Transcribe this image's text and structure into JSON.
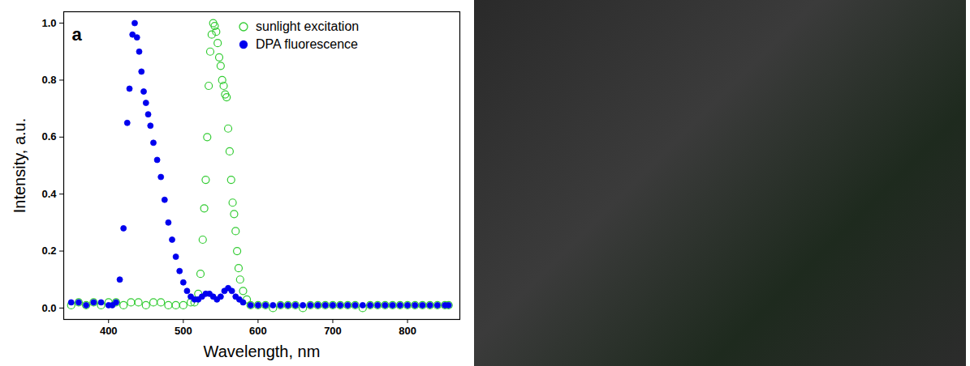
{
  "chart_data": {
    "type": "scatter",
    "annotations": [
      "a"
    ],
    "x_label": "Wavelength, nm",
    "y_label": "Intensity, a.u.",
    "xlim": [
      340,
      870
    ],
    "ylim": [
      -0.04,
      1.04
    ],
    "xticks": [
      400,
      500,
      600,
      700,
      800
    ],
    "yticks": [
      {
        "value": 0,
        "label": "0.0"
      },
      0.2,
      0.4,
      0.6,
      0.8,
      {
        "value": 1,
        "label": "1.0"
      }
    ],
    "grid": false,
    "legend": "upper right",
    "series": [
      {
        "name": "sunlight excitation",
        "color": "#33cc33",
        "marker": "open_circle",
        "x": [
          350,
          360,
          370,
          380,
          390,
          400,
          410,
          420,
          430,
          440,
          450,
          460,
          470,
          480,
          490,
          500,
          510,
          515,
          520,
          523,
          526,
          528,
          530,
          532,
          534,
          536,
          538,
          540,
          542,
          544,
          546,
          548,
          550,
          552,
          554,
          556,
          558,
          560,
          562,
          564,
          566,
          568,
          570,
          572,
          574,
          576,
          580,
          585,
          590,
          600,
          610,
          620,
          630,
          640,
          650,
          660,
          670,
          680,
          690,
          700,
          710,
          720,
          730,
          740,
          750,
          760,
          770,
          780,
          790,
          800,
          810,
          820,
          830,
          840,
          850,
          855
        ],
        "values": [
          0.01,
          0.02,
          0.01,
          0.02,
          0.01,
          0.02,
          0.02,
          0.01,
          0.02,
          0.02,
          0.01,
          0.02,
          0.02,
          0.01,
          0.01,
          0.01,
          0.02,
          0.02,
          0.05,
          0.12,
          0.24,
          0.35,
          0.45,
          0.6,
          0.78,
          0.9,
          0.96,
          1.0,
          0.99,
          0.97,
          0.93,
          0.88,
          0.85,
          0.8,
          0.78,
          0.75,
          0.74,
          0.63,
          0.55,
          0.45,
          0.37,
          0.33,
          0.27,
          0.2,
          0.14,
          0.1,
          0.06,
          0.03,
          0.01,
          0.01,
          0.01,
          0.0,
          0.01,
          0.01,
          0.01,
          0.0,
          0.01,
          0.01,
          0.01,
          0.01,
          0.01,
          0.01,
          0.01,
          0.0,
          0.01,
          0.01,
          0.01,
          0.01,
          0.01,
          0.01,
          0.01,
          0.01,
          0.01,
          0.01,
          0.01,
          0.01
        ]
      },
      {
        "name": "DPA fluorescence",
        "color": "#0000ee",
        "marker": "circle",
        "x": [
          350,
          360,
          370,
          380,
          390,
          400,
          405,
          410,
          415,
          420,
          425,
          428,
          432,
          435,
          438,
          441,
          444,
          447,
          450,
          453,
          456,
          460,
          465,
          470,
          475,
          480,
          485,
          490,
          495,
          500,
          505,
          510,
          515,
          520,
          525,
          530,
          535,
          540,
          545,
          550,
          555,
          560,
          565,
          570,
          575,
          580,
          590,
          600,
          610,
          620,
          630,
          640,
          650,
          660,
          670,
          680,
          690,
          700,
          710,
          720,
          730,
          740,
          750,
          760,
          770,
          780,
          790,
          800,
          810,
          820,
          830,
          840,
          850,
          855
        ],
        "values": [
          0.02,
          0.02,
          0.01,
          0.02,
          0.02,
          0.01,
          0.01,
          0.02,
          0.1,
          0.28,
          0.65,
          0.77,
          0.96,
          1.0,
          0.95,
          0.9,
          0.83,
          0.76,
          0.72,
          0.68,
          0.64,
          0.58,
          0.52,
          0.46,
          0.38,
          0.3,
          0.24,
          0.18,
          0.13,
          0.09,
          0.06,
          0.04,
          0.03,
          0.03,
          0.04,
          0.05,
          0.05,
          0.04,
          0.03,
          0.04,
          0.06,
          0.07,
          0.06,
          0.04,
          0.03,
          0.02,
          0.01,
          0.01,
          0.01,
          0.01,
          0.01,
          0.01,
          0.01,
          0.01,
          0.01,
          0.01,
          0.01,
          0.01,
          0.01,
          0.01,
          0.01,
          0.01,
          0.01,
          0.01,
          0.01,
          0.01,
          0.01,
          0.01,
          0.01,
          0.01,
          0.01,
          0.01,
          0.01,
          0.01
        ]
      }
    ]
  }
}
